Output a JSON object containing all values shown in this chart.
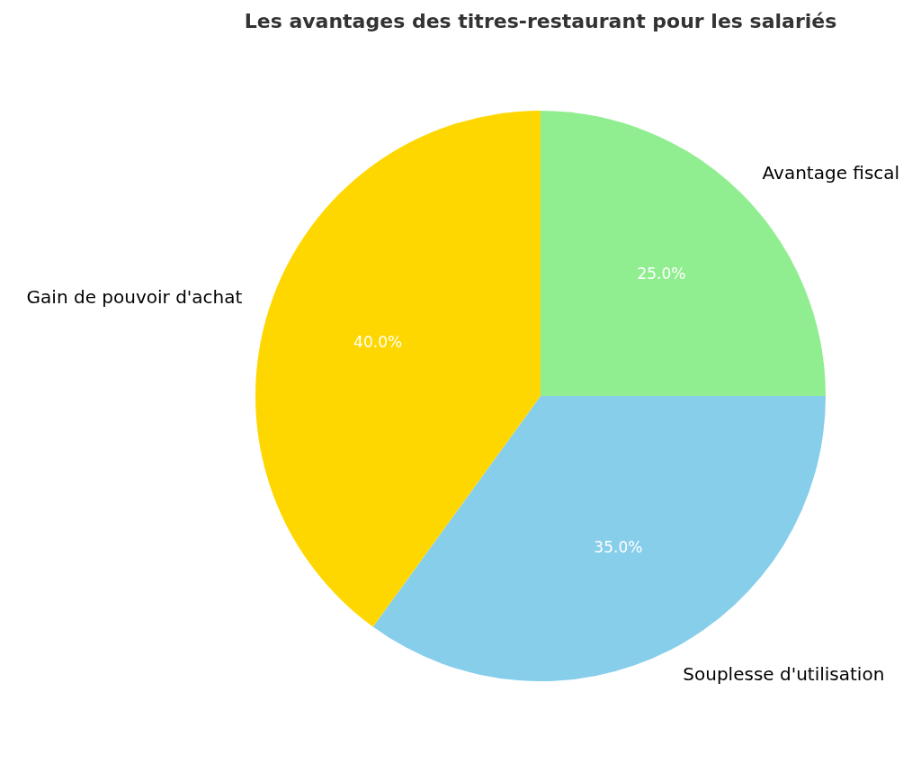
{
  "chart_data": {
    "type": "pie",
    "title": "Les avantages des titres-restaurant pour les salariés",
    "categories": [
      "Avantage fiscal",
      "Souplesse d'utilisation",
      "Gain de pouvoir d'achat"
    ],
    "values": [
      25,
      35,
      40
    ],
    "colors": [
      "#90ee90",
      "#87ceeb",
      "#ffd700"
    ],
    "value_labels": [
      "25.0%",
      "35.0%",
      "40.0%"
    ],
    "legend": false
  }
}
